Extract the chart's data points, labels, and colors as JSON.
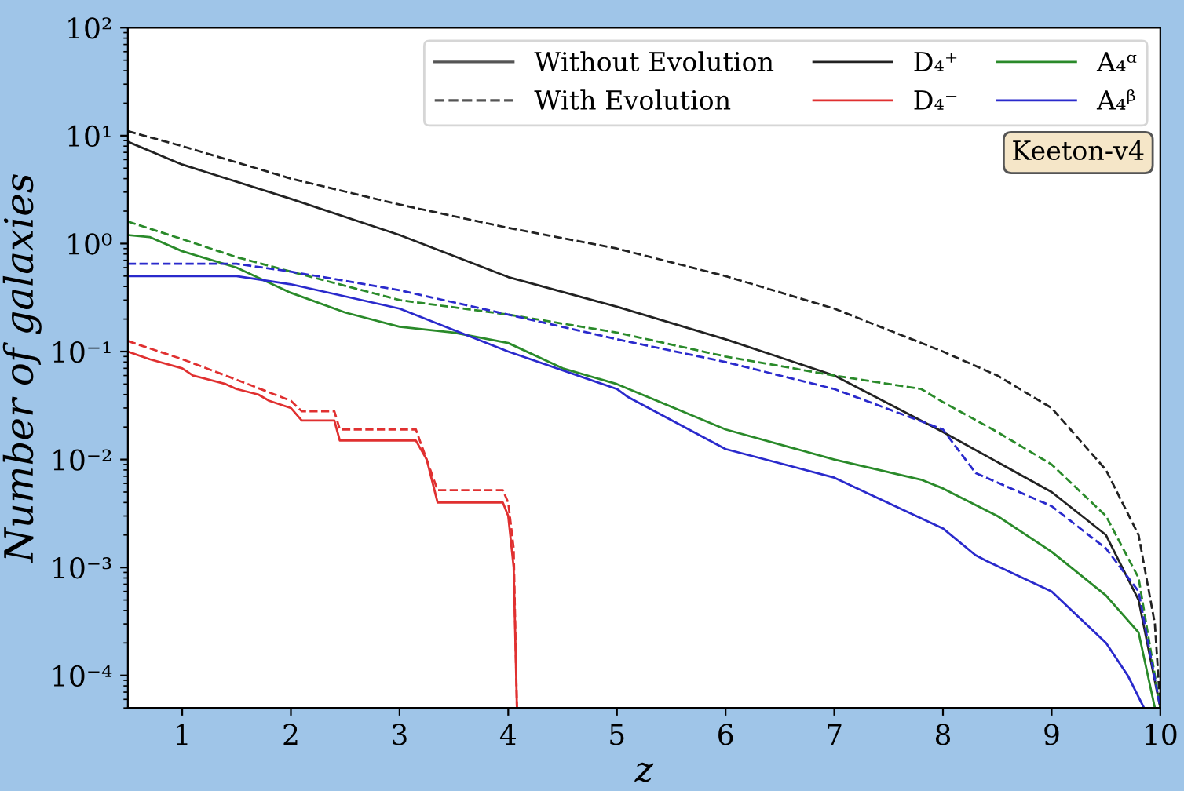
{
  "chart_data": {
    "type": "line",
    "xlabel": "z",
    "ylabel": "Number of galaxies",
    "log": "y",
    "xlim": [
      0.5,
      10
    ],
    "ylim": [
      5e-05,
      100
    ],
    "xticks": [
      1,
      2,
      3,
      4,
      5,
      6,
      7,
      8,
      9,
      10
    ],
    "yticks": [
      {
        "value": 0.0001,
        "label": "10⁻⁴"
      },
      {
        "value": 0.001,
        "label": "10⁻³"
      },
      {
        "value": 0.01,
        "label": "10⁻²"
      },
      {
        "value": 0.1,
        "label": "10⁻¹"
      },
      {
        "value": 1,
        "label": "10⁰"
      },
      {
        "value": 10,
        "label": "10¹"
      },
      {
        "value": 100,
        "label": "10²"
      }
    ],
    "grid": false,
    "legend": "top right",
    "marker": "none",
    "annotations": [
      "Without Evolution",
      "With Evolution",
      "Keeton-v4"
    ],
    "series": [
      {
        "name": "D₄⁺",
        "color": "#222222",
        "line_style": "solid",
        "x": [
          0.5,
          1,
          2,
          3,
          4,
          5,
          6,
          7,
          8,
          9,
          9.5,
          9.8,
          10
        ],
        "values": [
          8.8,
          5.4,
          2.6,
          1.2,
          0.49,
          0.26,
          0.13,
          0.06,
          0.018,
          0.005,
          0.002,
          0.0005,
          5e-05
        ]
      },
      {
        "name": "D₄⁻",
        "color": "#e03030",
        "line_style": "solid",
        "x": [
          0.5,
          0.7,
          1,
          1.1,
          1.4,
          1.5,
          1.7,
          1.8,
          2.0,
          2.1,
          2.4,
          2.45,
          3.15,
          3.25,
          3.35,
          3.95,
          4.0,
          4.05,
          4.08
        ],
        "values": [
          0.1,
          0.085,
          0.07,
          0.06,
          0.05,
          0.045,
          0.04,
          0.035,
          0.03,
          0.023,
          0.023,
          0.015,
          0.015,
          0.01,
          0.004,
          0.004,
          0.003,
          0.001,
          5e-05
        ]
      },
      {
        "name": "A₄ᵅ",
        "color": "#2a8a2a",
        "line_style": "solid",
        "x": [
          0.5,
          0.7,
          1,
          1.5,
          2,
          2.5,
          3,
          3.5,
          4,
          4.5,
          5,
          6,
          7,
          7.8,
          8,
          8.5,
          9,
          9.5,
          9.8,
          9.95
        ],
        "values": [
          1.2,
          1.15,
          0.85,
          0.6,
          0.35,
          0.23,
          0.17,
          0.15,
          0.12,
          0.07,
          0.05,
          0.019,
          0.01,
          0.0065,
          0.0054,
          0.003,
          0.0014,
          0.00055,
          0.00025,
          5e-05
        ]
      },
      {
        "name": "A₄ᵝ",
        "color": "#2a2acc",
        "line_style": "solid",
        "x": [
          0.5,
          1.5,
          2,
          3,
          4,
          5,
          5.1,
          6,
          7,
          8,
          8.3,
          8.4,
          9,
          9.5,
          9.7,
          9.85
        ],
        "values": [
          0.5,
          0.5,
          0.42,
          0.25,
          0.1,
          0.045,
          0.038,
          0.0125,
          0.0068,
          0.0023,
          0.0013,
          0.00115,
          0.0006,
          0.0002,
          0.0001,
          5e-05
        ]
      },
      {
        "color": "#222222",
        "line_style": "dashed",
        "x": [
          0.5,
          1,
          2,
          3,
          4,
          5,
          6,
          7,
          8,
          8.5,
          9,
          9.5,
          9.8,
          9.95,
          10
        ],
        "values": [
          11,
          8,
          4,
          2.3,
          1.4,
          0.9,
          0.5,
          0.25,
          0.1,
          0.06,
          0.03,
          0.008,
          0.002,
          0.0003,
          5e-05
        ]
      },
      {
        "color": "#e03030",
        "line_style": "dashed",
        "x": [
          0.5,
          1,
          1.4,
          2,
          2.1,
          2.4,
          2.45,
          3.15,
          3.35,
          3.95,
          4.0,
          4.05,
          4.08
        ],
        "values": [
          0.125,
          0.085,
          0.06,
          0.035,
          0.028,
          0.028,
          0.019,
          0.019,
          0.0052,
          0.0052,
          0.004,
          0.0015,
          5e-05
        ]
      },
      {
        "color": "#2a8a2a",
        "line_style": "dashed",
        "x": [
          0.5,
          1,
          1.5,
          2,
          3,
          4,
          5,
          6,
          7,
          7.8,
          8,
          8.5,
          9,
          9.5,
          9.8,
          10
        ],
        "values": [
          1.6,
          1.1,
          0.75,
          0.55,
          0.3,
          0.22,
          0.15,
          0.09,
          0.06,
          0.045,
          0.034,
          0.018,
          0.009,
          0.003,
          0.0008,
          5e-05
        ]
      },
      {
        "color": "#2a2acc",
        "line_style": "dashed",
        "x": [
          0.5,
          1.5,
          2,
          3,
          4,
          5,
          6,
          7,
          8,
          8.3,
          9,
          9.5,
          9.8,
          10
        ],
        "values": [
          0.65,
          0.65,
          0.55,
          0.37,
          0.22,
          0.13,
          0.08,
          0.045,
          0.019,
          0.0075,
          0.0037,
          0.0015,
          0.0006,
          5e-05
        ]
      }
    ]
  }
}
